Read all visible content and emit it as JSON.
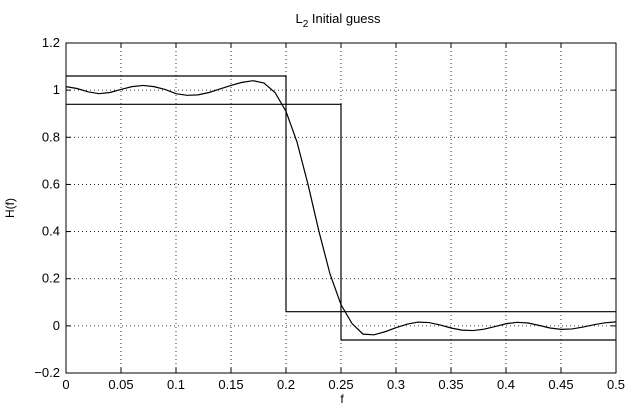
{
  "chart_data": {
    "type": "line",
    "title_main": "L",
    "title_sub": "2",
    "title_rest": " Initial guess",
    "xlabel": "f",
    "ylabel": "H(f)",
    "xlim": [
      0,
      0.5
    ],
    "ylim": [
      -0.2,
      1.2
    ],
    "xticks": [
      0,
      0.05,
      0.1,
      0.15,
      0.2,
      0.25,
      0.3,
      0.35,
      0.4,
      0.45,
      0.5
    ],
    "xtick_labels": [
      "0",
      "0.05",
      "0.1",
      "0.15",
      "0.2",
      "0.25",
      "0.3",
      "0.35",
      "0.4",
      "0.45",
      "0.5"
    ],
    "yticks": [
      -0.2,
      0,
      0.2,
      0.4,
      0.6,
      0.8,
      1,
      1.2
    ],
    "ytick_labels": [
      "−0.2",
      "0",
      "0.2",
      "0.4",
      "0.6",
      "0.8",
      "1",
      "1.2"
    ],
    "grid": true,
    "series": [
      {
        "x": [
          0,
          0.2,
          0.2,
          0.5
        ],
        "y": [
          1.06,
          1.06,
          0.06,
          0.06
        ]
      },
      {
        "x": [
          0,
          0.25,
          0.25,
          0.5
        ],
        "y": [
          0.94,
          0.94,
          -0.06,
          -0.06
        ]
      },
      {
        "x": [
          0,
          0.01,
          0.02,
          0.03,
          0.04,
          0.05,
          0.06,
          0.07,
          0.08,
          0.09,
          0.1,
          0.11,
          0.12,
          0.13,
          0.14,
          0.15,
          0.16,
          0.17,
          0.18,
          0.19,
          0.2,
          0.21,
          0.22,
          0.23,
          0.24,
          0.25,
          0.26,
          0.27,
          0.28,
          0.29,
          0.3,
          0.31,
          0.32,
          0.33,
          0.34,
          0.35,
          0.36,
          0.37,
          0.38,
          0.39,
          0.4,
          0.41,
          0.42,
          0.43,
          0.44,
          0.45,
          0.46,
          0.47,
          0.48,
          0.49,
          0.5
        ],
        "y": [
          1.015,
          1.007,
          0.993,
          0.985,
          0.99,
          1.003,
          1.015,
          1.02,
          1.015,
          1.003,
          0.985,
          0.978,
          0.98,
          0.99,
          1.005,
          1.02,
          1.033,
          1.04,
          1.03,
          0.99,
          0.91,
          0.78,
          0.6,
          0.4,
          0.22,
          0.09,
          0.01,
          -0.035,
          -0.038,
          -0.025,
          -0.008,
          0.007,
          0.016,
          0.014,
          0.004,
          -0.009,
          -0.018,
          -0.02,
          -0.014,
          -0.003,
          0.009,
          0.015,
          0.012,
          0.002,
          -0.009,
          -0.015,
          -0.013,
          -0.005,
          0.005,
          0.013,
          0.017
        ]
      }
    ]
  }
}
